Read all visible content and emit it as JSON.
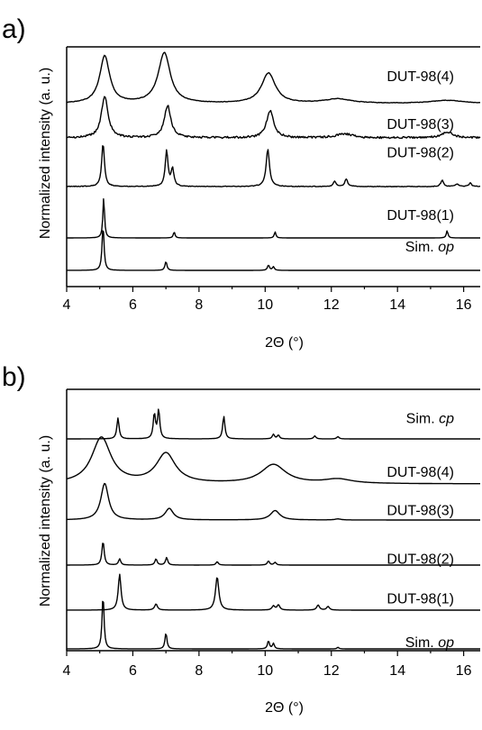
{
  "chart_data": [
    {
      "panel_label": "a)",
      "type": "line",
      "xlabel": "2Θ (°)",
      "ylabel": "Normalized intensity (a. u.)",
      "xlim": [
        4,
        16.5
      ],
      "xticks": [
        "4",
        "6",
        "8",
        "10",
        "12",
        "14",
        "16"
      ],
      "stacked": true,
      "series": [
        {
          "name": "DUT-98(4)",
          "name_parts": [
            "DUT-98(4)",
            ""
          ],
          "baseline": 0.0,
          "noise": 0.004,
          "peaks": [
            [
              5.15,
              0.18,
              0.75
            ],
            [
              6.95,
              0.22,
              0.8
            ],
            [
              10.1,
              0.25,
              0.48
            ],
            [
              12.2,
              0.5,
              0.07
            ],
            [
              15.5,
              0.6,
              0.05
            ]
          ]
        },
        {
          "name": "DUT-98(3)",
          "name_parts": [
            "DUT-98(3)",
            ""
          ],
          "baseline": 0.0,
          "noise": 0.02,
          "peaks": [
            [
              5.15,
              0.12,
              0.85
            ],
            [
              7.05,
              0.12,
              0.65
            ],
            [
              10.15,
              0.13,
              0.55
            ],
            [
              12.4,
              0.3,
              0.08
            ],
            [
              15.5,
              0.2,
              0.12
            ]
          ]
        },
        {
          "name": "DUT-98(2)",
          "name_parts": [
            "DUT-98(2)",
            ""
          ],
          "baseline": 0.0,
          "noise": 0.008,
          "peaks": [
            [
              5.1,
              0.05,
              1.0
            ],
            [
              7.02,
              0.05,
              0.82
            ],
            [
              7.2,
              0.05,
              0.4
            ],
            [
              10.08,
              0.06,
              0.86
            ],
            [
              12.1,
              0.05,
              0.12
            ],
            [
              12.45,
              0.05,
              0.18
            ],
            [
              15.35,
              0.05,
              0.15
            ],
            [
              15.8,
              0.05,
              0.06
            ],
            [
              16.2,
              0.05,
              0.08
            ]
          ]
        },
        {
          "name": "DUT-98(1)",
          "name_parts": [
            "DUT-98(1)",
            ""
          ],
          "baseline": 0.0,
          "noise": 0.0,
          "peaks": [
            [
              5.12,
              0.03,
              1.0
            ],
            [
              7.25,
              0.03,
              0.15
            ],
            [
              10.3,
              0.03,
              0.15
            ],
            [
              15.5,
              0.03,
              0.18
            ]
          ]
        },
        {
          "name": "Sim. op",
          "name_parts": [
            "Sim. ",
            "op"
          ],
          "baseline": 0.0,
          "noise": 0.0,
          "peaks": [
            [
              5.1,
              0.035,
              1.0
            ],
            [
              7.0,
              0.035,
              0.2
            ],
            [
              10.1,
              0.035,
              0.12
            ],
            [
              10.25,
              0.035,
              0.08
            ]
          ]
        }
      ]
    },
    {
      "panel_label": "b)",
      "type": "line",
      "xlabel": "2Θ (°)",
      "ylabel": "Normalized intensity (a. u.)",
      "xlim": [
        4,
        16.5
      ],
      "xticks": [
        "4",
        "6",
        "8",
        "10",
        "12",
        "14",
        "16"
      ],
      "stacked": true,
      "series": [
        {
          "name": "Sim. cp",
          "name_parts": [
            "Sim. ",
            "cp"
          ],
          "baseline": 0.0,
          "noise": 0.0,
          "peaks": [
            [
              5.55,
              0.04,
              0.55
            ],
            [
              6.65,
              0.04,
              0.65
            ],
            [
              6.78,
              0.04,
              0.75
            ],
            [
              8.75,
              0.04,
              0.6
            ],
            [
              10.25,
              0.04,
              0.12
            ],
            [
              10.4,
              0.04,
              0.1
            ],
            [
              11.5,
              0.04,
              0.08
            ],
            [
              12.2,
              0.04,
              0.06
            ]
          ]
        },
        {
          "name": "DUT-98(4)",
          "name_parts": [
            "DUT-98(4)",
            ""
          ],
          "baseline": 0.0,
          "noise": 0.0,
          "peaks": [
            [
              5.05,
              0.35,
              0.85
            ],
            [
              7.0,
              0.35,
              0.55
            ],
            [
              10.25,
              0.45,
              0.35
            ],
            [
              12.2,
              0.5,
              0.08
            ]
          ]
        },
        {
          "name": "DUT-98(3)",
          "name_parts": [
            "DUT-98(3)",
            ""
          ],
          "baseline": 0.0,
          "noise": 0.0,
          "peaks": [
            [
              5.15,
              0.14,
              0.7
            ],
            [
              7.1,
              0.15,
              0.22
            ],
            [
              10.3,
              0.17,
              0.18
            ],
            [
              12.2,
              0.1,
              0.02
            ]
          ]
        },
        {
          "name": "DUT-98(2)",
          "name_parts": [
            "DUT-98(2)",
            ""
          ],
          "baseline": 0.0,
          "noise": 0.0,
          "peaks": [
            [
              5.1,
              0.04,
              0.7
            ],
            [
              5.6,
              0.04,
              0.18
            ],
            [
              6.7,
              0.04,
              0.18
            ],
            [
              7.02,
              0.04,
              0.22
            ],
            [
              8.55,
              0.04,
              0.1
            ],
            [
              10.1,
              0.04,
              0.12
            ],
            [
              10.3,
              0.04,
              0.08
            ]
          ]
        },
        {
          "name": "DUT-98(1)",
          "name_parts": [
            "DUT-98(1)",
            ""
          ],
          "baseline": 0.0,
          "noise": 0.0,
          "peaks": [
            [
              5.6,
              0.05,
              0.7
            ],
            [
              6.7,
              0.05,
              0.12
            ],
            [
              8.55,
              0.06,
              0.65
            ],
            [
              10.25,
              0.05,
              0.08
            ],
            [
              10.4,
              0.05,
              0.1
            ],
            [
              11.6,
              0.05,
              0.1
            ],
            [
              11.9,
              0.05,
              0.07
            ]
          ]
        },
        {
          "name": "Sim. op",
          "name_parts": [
            "Sim. ",
            "op"
          ],
          "baseline": 0.0,
          "noise": 0.0,
          "peaks": [
            [
              5.1,
              0.035,
              1.0
            ],
            [
              7.0,
              0.035,
              0.3
            ],
            [
              10.1,
              0.035,
              0.15
            ],
            [
              10.25,
              0.035,
              0.1
            ],
            [
              12.2,
              0.035,
              0.03
            ]
          ]
        }
      ]
    }
  ]
}
